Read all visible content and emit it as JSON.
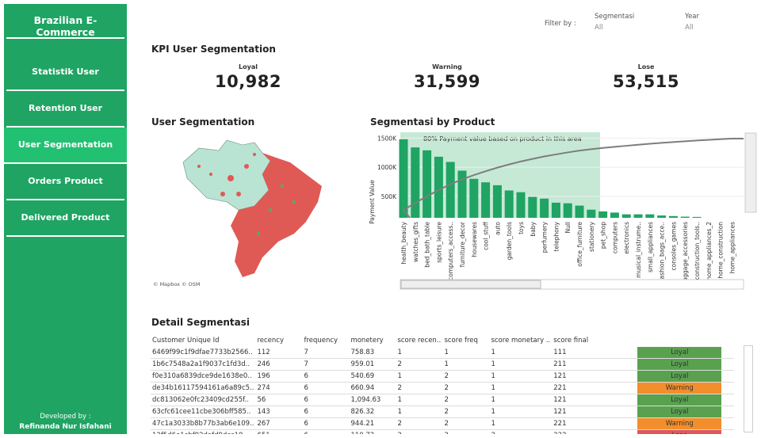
{
  "sidebar": {
    "title": "Brazilian E-Commerce",
    "items": [
      {
        "label": "Statistik User"
      },
      {
        "label": "Retention User"
      },
      {
        "label": "User Segmentation",
        "active": true
      },
      {
        "label": "Orders Product"
      },
      {
        "label": "Delivered Product"
      }
    ],
    "developed_by": "Developed by :",
    "author": "Refinanda Nur Isfahani"
  },
  "filters": {
    "label": "Filter by :",
    "segmentasi": {
      "label": "Segmentasi",
      "value": "All"
    },
    "year": {
      "label": "Year",
      "value": "All"
    }
  },
  "kpi": {
    "title": "KPI User Segmentation",
    "items": [
      {
        "label": "Loyal",
        "value": "10,982"
      },
      {
        "label": "Warning",
        "value": "31,599"
      },
      {
        "label": "Lose",
        "value": "53,515"
      }
    ]
  },
  "map": {
    "title": "User Segmentation",
    "attribution": "© Mapbox © OSM"
  },
  "chart_data": {
    "type": "bar",
    "title": "Segmentasi by Product",
    "ylabel": "Payment Value",
    "annotation": "80% Payment value based on product in this area",
    "ylim": [
      130000,
      1600000
    ],
    "yticks": [
      "500K",
      "1000K",
      "1500K"
    ],
    "ytick_values": [
      500000,
      1000000,
      1500000
    ],
    "categories": [
      "health_beauty",
      "watches_gifts",
      "bed_bath_table",
      "sports_leisure",
      "computers_access..",
      "furniture_decor",
      "housewares",
      "cool_stuff",
      "auto",
      "garden_tools",
      "toys",
      "baby",
      "perfumery",
      "telephony",
      "Null",
      "office_furniture",
      "stationery",
      "pet_shop",
      "computers",
      "electronics",
      "musical_instrume..",
      "small_appliances",
      "fashion_bags_acce..",
      "consoles_games",
      "luggage_accessories",
      "construction_tools..",
      "home_appliances_2",
      "home_construction",
      "home_appliances"
    ],
    "values": [
      1480000,
      1340000,
      1290000,
      1180000,
      1090000,
      940000,
      800000,
      740000,
      690000,
      600000,
      570000,
      490000,
      460000,
      390000,
      380000,
      340000,
      270000,
      240000,
      220000,
      190000,
      190000,
      190000,
      170000,
      160000,
      150000,
      145000,
      120000,
      120000,
      120000
    ],
    "highlight_through": "stationery",
    "line": "cumulative payment value",
    "bar_color": "#1fa463"
  },
  "table": {
    "title": "Detail Segmentasi",
    "columns": [
      "Customer Unique Id",
      "recency",
      "frequency",
      "monetery",
      "score recen..",
      "score freq",
      "score monetary ..",
      "score final"
    ],
    "rows": [
      [
        "6469f99c1f9dfae7733b2566..",
        "112",
        "7",
        "758.83",
        "1",
        "1",
        "1",
        "111",
        "Loyal"
      ],
      [
        "1b6c7548a2a1f9037c1fd3d..",
        "246",
        "7",
        "959.01",
        "2",
        "1",
        "1",
        "211",
        "Loyal"
      ],
      [
        "f0e310a6839dce9de1638e0..",
        "196",
        "6",
        "540.69",
        "1",
        "2",
        "1",
        "121",
        "Loyal"
      ],
      [
        "de34b16117594161a6a89c5..",
        "274",
        "6",
        "660.94",
        "2",
        "2",
        "1",
        "221",
        "Warning"
      ],
      [
        "dc813062e0fc23409cd255f..",
        "56",
        "6",
        "1,094.63",
        "1",
        "2",
        "1",
        "121",
        "Loyal"
      ],
      [
        "63cfc61cee11cbe306bff585..",
        "143",
        "6",
        "826.32",
        "1",
        "2",
        "1",
        "121",
        "Loyal"
      ],
      [
        "47c1a3033b8b77b3ab6e109..",
        "267",
        "6",
        "944.21",
        "2",
        "2",
        "1",
        "221",
        "Warning"
      ],
      [
        "12f5d6e1cbf92dafd9dcc19..",
        "651",
        "6",
        "110.72",
        "2",
        "2",
        "2",
        "222",
        "Lose"
      ]
    ],
    "segment_colors": {
      "Loyal": "#59a14f",
      "Warning": "#f28e2b",
      "Lose": "#e15759"
    }
  }
}
